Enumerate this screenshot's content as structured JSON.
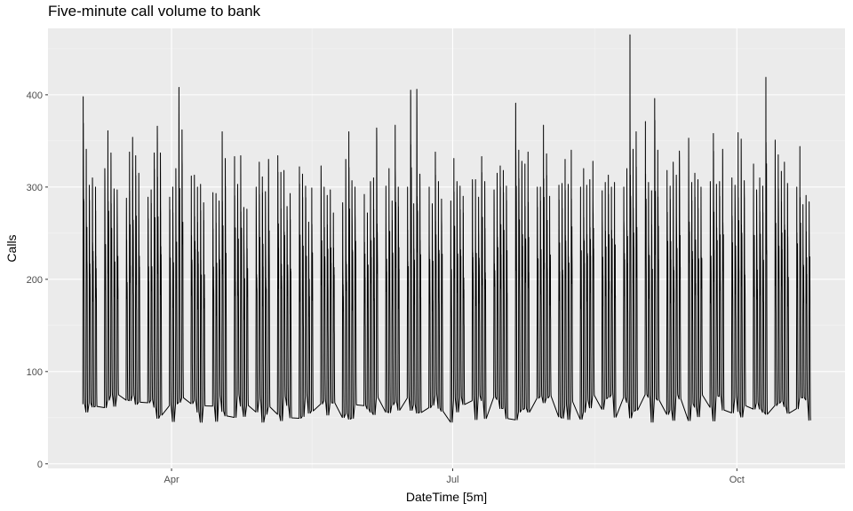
{
  "chart_data": {
    "type": "line",
    "title": "Five-minute call volume to bank",
    "xlabel": "DateTime [5m]",
    "ylabel": "Calls",
    "x_start": "2003-03-03",
    "x_end": "2003-10-24",
    "xlim": [
      "2003-02-20",
      "2003-11-05"
    ],
    "ylim": [
      -5,
      472
    ],
    "y_ticks": [
      0,
      100,
      200,
      300,
      400
    ],
    "x_ticks": [
      {
        "label": "Apr",
        "date": "2003-04-01"
      },
      {
        "label": "Jul",
        "date": "2003-07-01"
      },
      {
        "label": "Oct",
        "date": "2003-10-01"
      }
    ],
    "grid": true,
    "legend": "none",
    "series": [
      {
        "daily_peaks": [
          398,
          341,
          302,
          310,
          300,
          320,
          361,
          337,
          298,
          297,
          288,
          338,
          354,
          334,
          315,
          289,
          297,
          337,
          366,
          337,
          289,
          300,
          320,
          408,
          362,
          312,
          313,
          300,
          303,
          283,
          294,
          293,
          285,
          360,
          331,
          333,
          303,
          334,
          278,
          276,
          300,
          327,
          311,
          295,
          330,
          334,
          316,
          318,
          279,
          293,
          322,
          314,
          301,
          262,
          299,
          323,
          300,
          291,
          297,
          272,
          283,
          330,
          360,
          307,
          300,
          292,
          272,
          306,
          310,
          364,
          301,
          320,
          285,
          367,
          300,
          300,
          405,
          282,
          406,
          314,
          300,
          282,
          338,
          306,
          287,
          285,
          331,
          306,
          301,
          290,
          308,
          308,
          289,
          333,
          306,
          297,
          315,
          323,
          318,
          301,
          391,
          340,
          328,
          325,
          338,
          300,
          300,
          367,
          336,
          290,
          302,
          304,
          330,
          303,
          340,
          300,
          320,
          302,
          308,
          328,
          296,
          305,
          313,
          300,
          305,
          300,
          320,
          465,
          341,
          360,
          371,
          305,
          296,
          396,
          340,
          318,
          301,
          327,
          313,
          339,
          353,
          305,
          315,
          308,
          300,
          306,
          358,
          303,
          306,
          341,
          310,
          302,
          359,
          352,
          307,
          325,
          297,
          310,
          301,
          419,
          351,
          335,
          317,
          327,
          304,
          300,
          344,
          281,
          291,
          284,
          332,
          295,
          300,
          294,
          298,
          288,
          310,
          272,
          306,
          399,
          310,
          300,
          394,
          289,
          341,
          301,
          307,
          311,
          293,
          338,
          296,
          356,
          302,
          270,
          295,
          283,
          305,
          341,
          300,
          421,
          290,
          334,
          276,
          330,
          320,
          300,
          299,
          292,
          318,
          315
        ]
      }
    ]
  }
}
